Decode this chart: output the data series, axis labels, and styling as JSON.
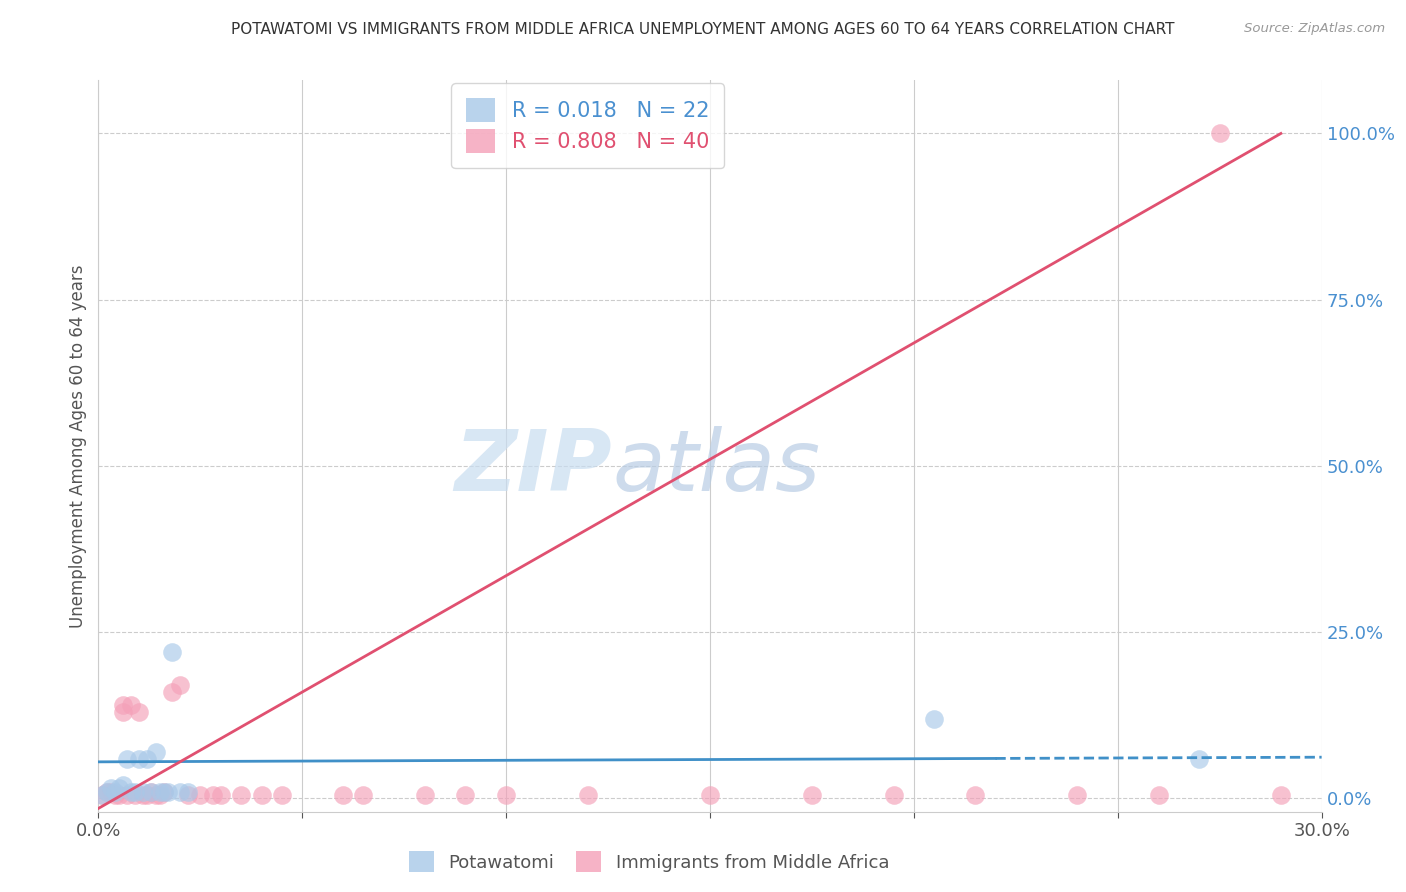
{
  "title": "POTAWATOMI VS IMMIGRANTS FROM MIDDLE AFRICA UNEMPLOYMENT AMONG AGES 60 TO 64 YEARS CORRELATION CHART",
  "source": "Source: ZipAtlas.com",
  "ylabel": "Unemployment Among Ages 60 to 64 years",
  "xlim": [
    0.0,
    0.3
  ],
  "ylim": [
    -0.02,
    1.08
  ],
  "xticks": [
    0.0,
    0.05,
    0.1,
    0.15,
    0.2,
    0.25,
    0.3
  ],
  "xticklabels": [
    "0.0%",
    "",
    "",
    "",
    "",
    "",
    "30.0%"
  ],
  "yticks_right": [
    0.0,
    0.25,
    0.5,
    0.75,
    1.0
  ],
  "yticklabels_right": [
    "0.0%",
    "25.0%",
    "50.0%",
    "75.0%",
    "100.0%"
  ],
  "legend1_label": "R = 0.018   N = 22",
  "legend2_label": "R = 0.808   N = 40",
  "legend1_color": "#a8c8e8",
  "legend2_color": "#f4a0b8",
  "line1_color": "#4090c8",
  "line2_color": "#e05070",
  "line1_x0": 0.0,
  "line1_y0": 0.055,
  "line1_x1": 0.3,
  "line1_y1": 0.062,
  "line2_x0": 0.0,
  "line2_y0": -0.015,
  "line2_x1": 0.29,
  "line2_y1": 1.0,
  "watermark": "ZIPatlas",
  "watermark_color": "#c8dff0",
  "grid_color": "#cccccc",
  "potawatomi_x": [
    0.001,
    0.002,
    0.003,
    0.004,
    0.005,
    0.006,
    0.007,
    0.008,
    0.009,
    0.01,
    0.011,
    0.012,
    0.013,
    0.014,
    0.015,
    0.016,
    0.017,
    0.018,
    0.02,
    0.022,
    0.205,
    0.27
  ],
  "potawatomi_y": [
    0.005,
    0.01,
    0.015,
    0.01,
    0.015,
    0.02,
    0.06,
    0.01,
    0.01,
    0.06,
    0.01,
    0.06,
    0.01,
    0.07,
    0.01,
    0.01,
    0.01,
    0.22,
    0.01,
    0.01,
    0.12,
    0.06
  ],
  "immigrants_x": [
    0.001,
    0.002,
    0.003,
    0.004,
    0.005,
    0.006,
    0.006,
    0.007,
    0.008,
    0.009,
    0.01,
    0.011,
    0.012,
    0.013,
    0.014,
    0.015,
    0.016,
    0.018,
    0.02,
    0.022,
    0.025,
    0.028,
    0.03,
    0.035,
    0.04,
    0.045,
    0.06,
    0.065,
    0.08,
    0.09,
    0.1,
    0.12,
    0.15,
    0.175,
    0.195,
    0.215,
    0.24,
    0.26,
    0.275,
    0.29
  ],
  "immigrants_y": [
    0.005,
    0.01,
    0.01,
    0.005,
    0.005,
    0.13,
    0.14,
    0.005,
    0.14,
    0.005,
    0.13,
    0.005,
    0.005,
    0.01,
    0.005,
    0.005,
    0.01,
    0.16,
    0.17,
    0.005,
    0.005,
    0.005,
    0.005,
    0.005,
    0.005,
    0.005,
    0.005,
    0.005,
    0.005,
    0.005,
    0.005,
    0.005,
    0.005,
    0.005,
    0.005,
    0.005,
    0.005,
    0.005,
    1.0,
    0.005
  ]
}
